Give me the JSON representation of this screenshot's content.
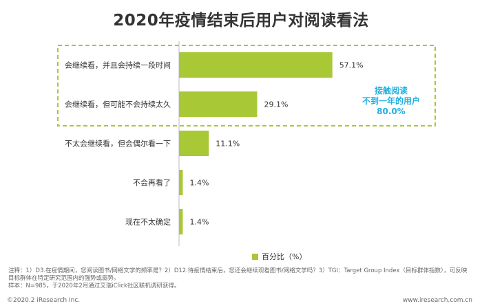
{
  "title": "2020年疫情结束后用户对阅读看法",
  "chart_data": {
    "type": "bar",
    "orientation": "horizontal",
    "categories": [
      "会继续看，并且会持续一段时间",
      "会继续看，但可能不会持续太久",
      "不太会继续看，但会偶尔看一下",
      "不会再看了",
      "现在不太确定"
    ],
    "series": [
      {
        "name": "百分比（%）",
        "values": [
          57.1,
          29.1,
          11.1,
          1.4,
          1.4
        ]
      }
    ],
    "data_labels": [
      "57.1%",
      "29.1%",
      "11.1%",
      "1.4%",
      "1.4%"
    ],
    "xlim": [
      0,
      80
    ],
    "legend": "bottom",
    "bar_color": "#a8c836",
    "highlight": {
      "groups": [
        0,
        1
      ],
      "border_color": "#a8c836",
      "annotation_lines": [
        "接触阅读",
        "不到一年的用户",
        "80.0%"
      ],
      "annotation_color": "#22b0e0"
    }
  },
  "notes": [
    "注释：1）D3.在疫情期间，您阅读图书/网络文学的频率是？2）D12.待疫情结束后，您还会继续观看图书/网络文学吗？3）TGI：Target Group Index（目标群体指数），可反映",
    "目标群体在特定研究范围内的强势或弱势。",
    "样本：N=985，于2020年2月通过艾瑞iClick社区联机调研获得。"
  ],
  "footer": {
    "copyright": "©2020.2 iResearch Inc.",
    "website": "www.iresearch.com.cn"
  }
}
